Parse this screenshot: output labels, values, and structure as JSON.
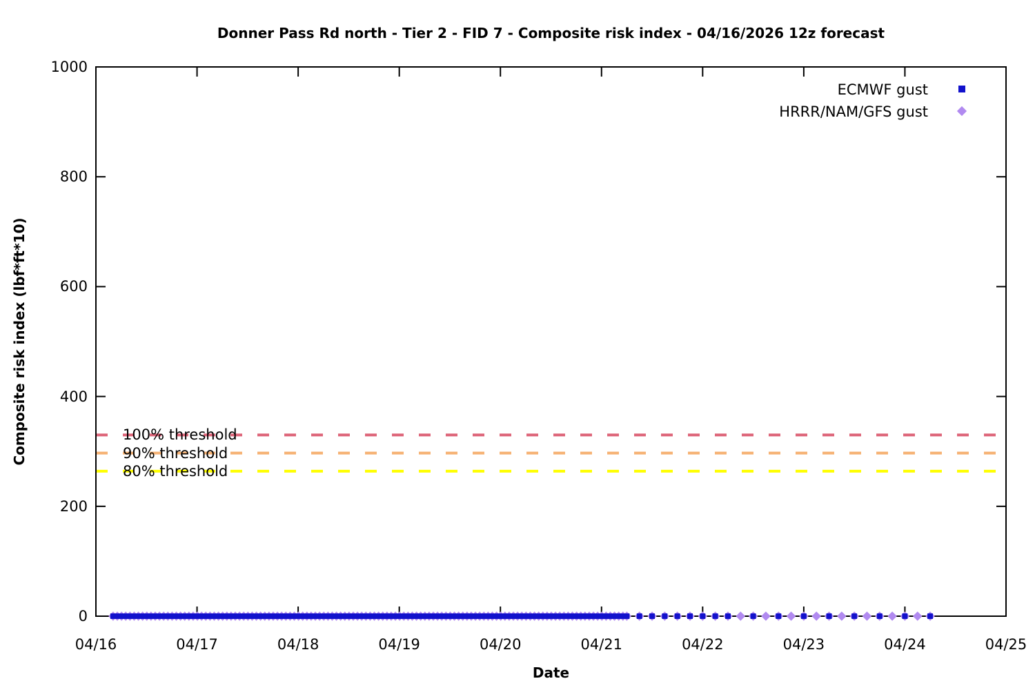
{
  "title": "Donner Pass Rd north - Tier 2 - FID 7 - Composite risk index - 04/16/2026 12z forecast",
  "axes": {
    "x": {
      "label": "Date",
      "ticks": [
        "04/16",
        "04/17",
        "04/18",
        "04/19",
        "04/20",
        "04/21",
        "04/22",
        "04/23",
        "04/24",
        "04/25"
      ]
    },
    "y": {
      "label": "Composite risk index (lbf*ft*10)",
      "ticks": [
        "0",
        "200",
        "400",
        "600",
        "800",
        "1000"
      ],
      "min": 0,
      "max": 1000
    }
  },
  "legend": {
    "items": [
      {
        "label": "ECMWF gust",
        "marker": "square-icon",
        "color": "#1212cc"
      },
      {
        "label": "HRRR/NAM/GFS gust",
        "marker": "diamond-icon",
        "color": "#b18af0"
      }
    ]
  },
  "chart_data": {
    "type": "scatter",
    "title": "Donner Pass Rd north - Tier 2 - FID 7 - Composite risk index - 04/16/2026 12z forecast",
    "xlabel": "Date",
    "ylabel": "Composite risk index (lbf*ft*10)",
    "x_axis": {
      "start_date": "04/16",
      "end_date": "04/25",
      "span_days": 9
    },
    "ylim": [
      0,
      1000
    ],
    "grid": false,
    "legend_position": "top-right-inside",
    "border_color": "#000000",
    "thresholds": [
      {
        "label": "100% threshold",
        "value": 330,
        "color": "#dd6377",
        "style": "dashed"
      },
      {
        "label": "90% threshold",
        "value": 297,
        "color": "#f6b172",
        "style": "dashed"
      },
      {
        "label": "80% threshold",
        "value": 264,
        "color": "#ffff00",
        "style": "dashed"
      }
    ],
    "series": [
      {
        "name": "ECMWF gust",
        "marker": "square",
        "color": "#1212cc",
        "y_value": 0,
        "description": "Every forecast point plots at composite risk index 0",
        "sample_segments": [
          {
            "start_day": 0.17,
            "end_day": 5.21,
            "step_hours": 1
          },
          {
            "start_day": 5.25,
            "end_day": 6.25,
            "step_hours": 3
          },
          {
            "start_day": 6.5,
            "end_day": 8.25,
            "step_hours": 6
          }
        ]
      },
      {
        "name": "HRRR/NAM/GFS gust",
        "marker": "diamond",
        "color": "#b18af0",
        "y_value": 0,
        "description": "Every forecast point plots at composite risk index 0",
        "sample_segments": [
          {
            "start_day": 0.17,
            "end_day": 5.21,
            "step_hours": 1
          },
          {
            "start_day": 5.25,
            "end_day": 8.25,
            "step_hours": 3
          }
        ]
      }
    ]
  }
}
